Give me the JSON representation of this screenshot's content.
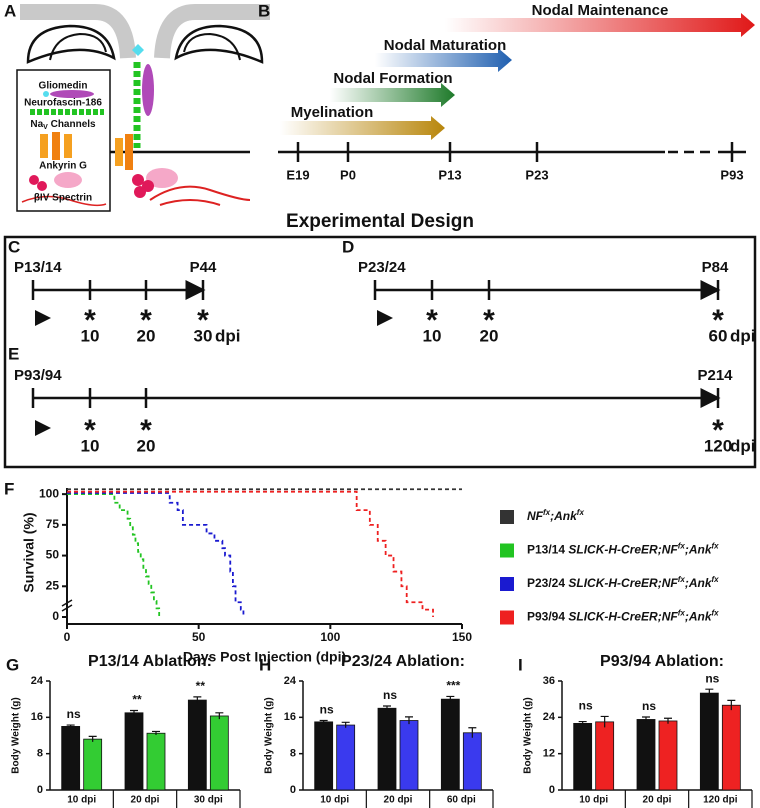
{
  "panels": {
    "A": {
      "letter": "A",
      "labels": [
        "Gliomedin",
        "Neurofascin-186",
        "NaV Channels",
        "Ankyrin G",
        "βIV Spectrin"
      ]
    },
    "B": {
      "letter": "B",
      "phases": [
        {
          "label": "Nodal Maintenance",
          "color": "#e01818"
        },
        {
          "label": "Nodal Maturation",
          "color": "#1f5fb0"
        },
        {
          "label": "Nodal Formation",
          "color": "#1e7a2a"
        },
        {
          "label": "Myelination",
          "color": "#b8860b"
        }
      ],
      "timepoints": [
        "E19",
        "P0",
        "P13",
        "P23",
        "P93"
      ]
    },
    "design": {
      "title": "Experimental Design",
      "groups": [
        {
          "letter": "C",
          "start": "P13/14",
          "end": "P44",
          "doses": [
            "10",
            "20",
            "30"
          ],
          "unit": "dpi",
          "color": "#22c422"
        },
        {
          "letter": "D",
          "start": "P23/24",
          "end": "P84",
          "doses": [
            "10",
            "20",
            "60"
          ],
          "unit": "dpi",
          "color": "#1a1ad0"
        },
        {
          "letter": "E",
          "start": "P93/94",
          "end": "P214",
          "doses": [
            "10",
            "20",
            "120"
          ],
          "unit": "dpi",
          "color": "#ee3030"
        }
      ]
    }
  },
  "chart_data": [
    {
      "type": "step",
      "letter": "F",
      "xlabel": "Days Post Injection (dpi)",
      "ylabel": "Survival (%)",
      "xlim": [
        0,
        150
      ],
      "xticks": [
        0,
        50,
        100,
        150
      ],
      "ylim": [
        0,
        105
      ],
      "yticks": [
        0,
        25,
        50,
        75,
        100
      ],
      "series": [
        {
          "name": "NFfx;Ankfx",
          "color": "#333333",
          "x": [
            0,
            150
          ],
          "values": [
            104,
            104
          ]
        },
        {
          "name": "P13/14 SLICK-H-CreER;NFfx;Ankfx",
          "color": "#22c422",
          "x": [
            0,
            18,
            18,
            20,
            20,
            23,
            23,
            24,
            24,
            25,
            25,
            26,
            26,
            27,
            27,
            28,
            28,
            29,
            29,
            30,
            30,
            31,
            31,
            32,
            32,
            33,
            33,
            34,
            34,
            35,
            35
          ],
          "values": [
            100,
            100,
            93,
            93,
            87,
            87,
            80,
            80,
            73,
            73,
            67,
            67,
            60,
            60,
            53,
            53,
            47,
            47,
            40,
            40,
            33,
            33,
            27,
            27,
            20,
            20,
            13,
            13,
            7,
            7,
            0
          ]
        },
        {
          "name": "P23/24 SLICK-H-CreER;NFfx;Ankfx",
          "color": "#1a1ad0",
          "x": [
            0,
            39,
            39,
            42,
            42,
            44,
            44,
            53,
            53,
            56,
            56,
            59,
            59,
            60,
            60,
            62,
            62,
            63,
            63,
            64,
            64,
            66,
            66,
            67,
            67
          ],
          "values": [
            101,
            101,
            93,
            93,
            87,
            87,
            75,
            75,
            68,
            68,
            62,
            62,
            56,
            56,
            50,
            50,
            37,
            37,
            25,
            25,
            12,
            12,
            6,
            6,
            0
          ]
        },
        {
          "name": "P93/94 SLICK-H-CreER;NFfx;Ankfx",
          "color": "#ee2020",
          "x": [
            0,
            110,
            110,
            115,
            115,
            118,
            118,
            121,
            121,
            124,
            124,
            127,
            127,
            129,
            129,
            135,
            135,
            139,
            139
          ],
          "values": [
            102,
            102,
            87,
            87,
            75,
            75,
            62,
            62,
            50,
            50,
            37,
            37,
            25,
            25,
            12,
            12,
            6,
            6,
            0
          ]
        }
      ]
    },
    {
      "type": "bar",
      "letter": "G",
      "title": "P13/14 Ablation:",
      "ylabel": "Body Weight (g)",
      "categories": [
        "10 dpi",
        "20 dpi",
        "30 dpi"
      ],
      "ylim": [
        0,
        24
      ],
      "yticks": [
        0,
        8,
        16,
        24
      ],
      "series": [
        {
          "color": "#111111",
          "values": [
            14,
            17,
            19.8
          ],
          "errors": [
            0.3,
            0.5,
            0.7
          ]
        },
        {
          "color": "#33cc33",
          "values": [
            11.2,
            12.5,
            16.3
          ],
          "errors": [
            0.6,
            0.4,
            0.7
          ]
        }
      ],
      "annotations": [
        "ns",
        "**",
        "**"
      ]
    },
    {
      "type": "bar",
      "letter": "H",
      "title": "P23/24 Ablation:",
      "ylabel": "Body Weight (g)",
      "categories": [
        "10 dpi",
        "20 dpi",
        "60 dpi"
      ],
      "ylim": [
        0,
        24
      ],
      "yticks": [
        0,
        8,
        16,
        24
      ],
      "series": [
        {
          "color": "#111111",
          "values": [
            15,
            18,
            20
          ],
          "errors": [
            0.3,
            0.5,
            0.6
          ]
        },
        {
          "color": "#3a3aee",
          "values": [
            14.3,
            15.3,
            12.6
          ],
          "errors": [
            0.6,
            0.8,
            1.1
          ]
        }
      ],
      "annotations": [
        "ns",
        "ns",
        "***"
      ]
    },
    {
      "type": "bar",
      "letter": "I",
      "title": "P93/94 Ablation:",
      "ylabel": "Body Weight (g)",
      "categories": [
        "10 dpi",
        "20 dpi",
        "120 dpi"
      ],
      "ylim": [
        0,
        36
      ],
      "yticks": [
        0,
        12,
        24,
        36
      ],
      "series": [
        {
          "color": "#111111",
          "values": [
            22,
            23.3,
            32
          ],
          "errors": [
            0.6,
            0.8,
            1.3
          ]
        },
        {
          "color": "#ee2222",
          "values": [
            22.5,
            22.8,
            28
          ],
          "errors": [
            1.8,
            0.9,
            1.6
          ]
        }
      ],
      "annotations": [
        "ns",
        "ns",
        "ns"
      ]
    }
  ]
}
